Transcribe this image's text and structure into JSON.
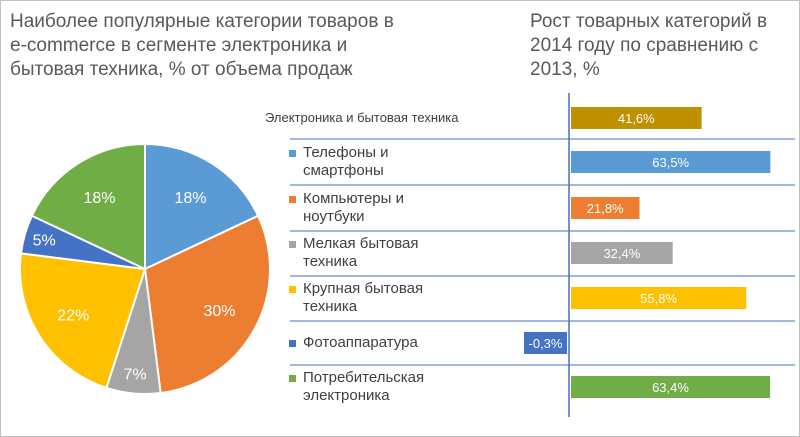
{
  "chart_data": [
    {
      "type": "pie",
      "title_lines": [
        "Наиболее популярные категории товаров в",
        "e-commerce в сегменте электроника и",
        "бытовая техника, % от объема продаж"
      ],
      "slices": [
        {
          "label": "18%",
          "value": 18,
          "color": "#5B9BD5"
        },
        {
          "label": "30%",
          "value": 30,
          "color": "#ED7D31"
        },
        {
          "label": "7%",
          "value": 7,
          "color": "#A5A5A5"
        },
        {
          "label": "22%",
          "value": 22,
          "color": "#FFC000"
        },
        {
          "label": "5%",
          "value": 5,
          "color": "#4472C4"
        },
        {
          "label": "18%",
          "value": 18,
          "color": "#70AD47"
        }
      ]
    },
    {
      "type": "bar",
      "orientation": "horizontal",
      "title_lines": [
        "Рост товарных категорий в",
        "2014 году по сравнению с",
        "2013, %"
      ],
      "categories": [
        {
          "lines": [
            "Электроника и бытовая техника"
          ],
          "value": 41.6,
          "label": "41,6%",
          "color": "#BF9000",
          "header": true
        },
        {
          "lines": [
            "Телефоны и",
            "смартфоны"
          ],
          "value": 63.5,
          "label": "63,5%",
          "color": "#5B9BD5"
        },
        {
          "lines": [
            "Компьютеры и",
            "ноутбуки"
          ],
          "value": 21.8,
          "label": "21,8%",
          "color": "#ED7D31"
        },
        {
          "lines": [
            "Мелкая бытовая",
            "техника"
          ],
          "value": 32.4,
          "label": "32,4%",
          "color": "#A5A5A5"
        },
        {
          "lines": [
            "Крупная бытовая",
            "техника"
          ],
          "value": 55.8,
          "label": "55,8%",
          "color": "#FFC000"
        },
        {
          "lines": [
            "Фотоаппаратура"
          ],
          "value": -0.3,
          "label": "-0,3%",
          "color": "#4472C4"
        },
        {
          "lines": [
            "Потребительская",
            "электроника"
          ],
          "value": 63.4,
          "label": "63,4%",
          "color": "#70AD47"
        }
      ]
    }
  ]
}
